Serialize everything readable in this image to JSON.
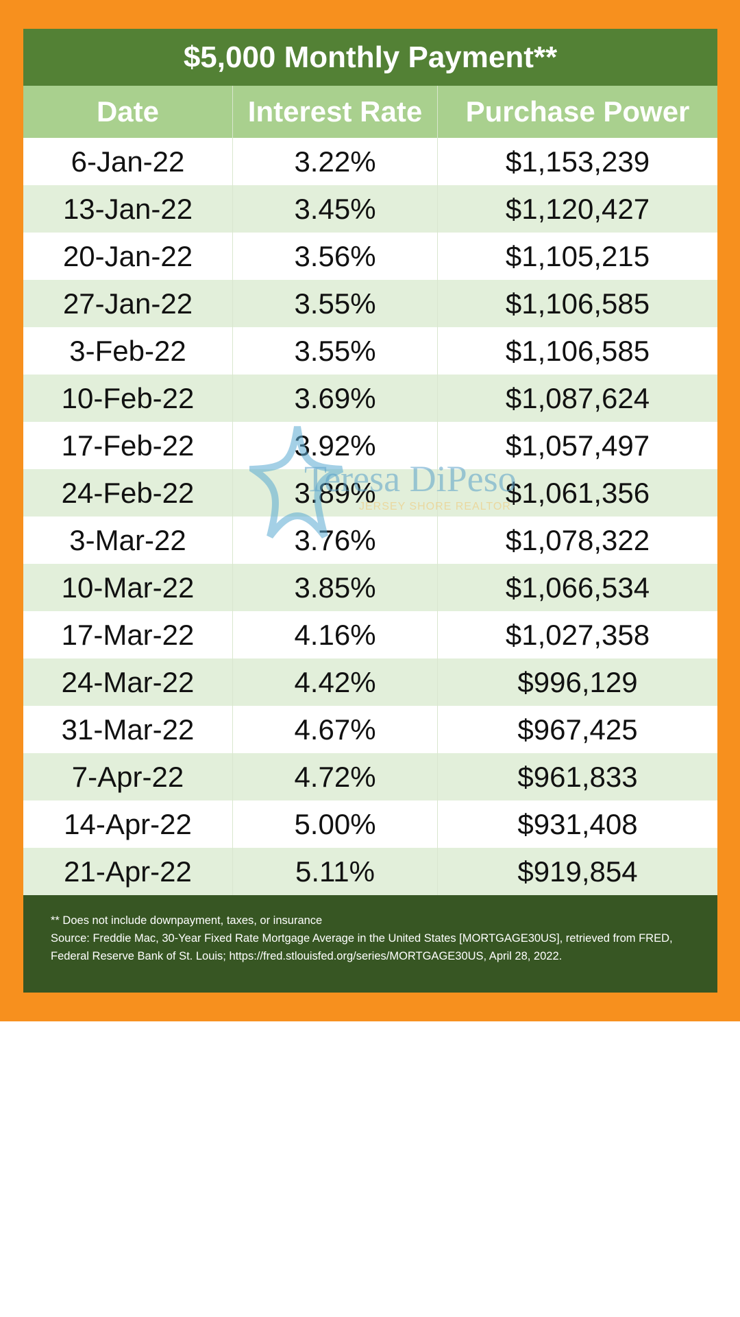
{
  "title": "$5,000 Monthly Payment**",
  "table": {
    "headers": [
      "Date",
      "Interest Rate",
      "Purchase Power"
    ],
    "rows": [
      [
        "6-Jan-22",
        "3.22%",
        "$1,153,239"
      ],
      [
        "13-Jan-22",
        "3.45%",
        "$1,120,427"
      ],
      [
        "20-Jan-22",
        "3.56%",
        "$1,105,215"
      ],
      [
        "27-Jan-22",
        "3.55%",
        "$1,106,585"
      ],
      [
        "3-Feb-22",
        "3.55%",
        "$1,106,585"
      ],
      [
        "10-Feb-22",
        "3.69%",
        "$1,087,624"
      ],
      [
        "17-Feb-22",
        "3.92%",
        "$1,057,497"
      ],
      [
        "24-Feb-22",
        "3.89%",
        "$1,061,356"
      ],
      [
        "3-Mar-22",
        "3.76%",
        "$1,078,322"
      ],
      [
        "10-Mar-22",
        "3.85%",
        "$1,066,534"
      ],
      [
        "17-Mar-22",
        "4.16%",
        "$1,027,358"
      ],
      [
        "24-Mar-22",
        "4.42%",
        "$996,129"
      ],
      [
        "31-Mar-22",
        "4.67%",
        "$967,425"
      ],
      [
        "7-Apr-22",
        "4.72%",
        "$961,833"
      ],
      [
        "14-Apr-22",
        "5.00%",
        "$931,408"
      ],
      [
        "21-Apr-22",
        "5.11%",
        "$919,854"
      ]
    ]
  },
  "footer": [
    "** Does not include downpayment, taxes, or insurance",
    "Source: Freddie Mac, 30-Year Fixed Rate Mortgage Average in the United States [MORTGAGE30US], retrieved from FRED, Federal Reserve Bank of St. Louis; https://fred.stlouisfed.org/series/MORTGAGE30US, April 28, 2022."
  ],
  "watermark": {
    "name": "Teresa DiPeso",
    "tagline": "JERSEY SHORE REALTOR"
  }
}
